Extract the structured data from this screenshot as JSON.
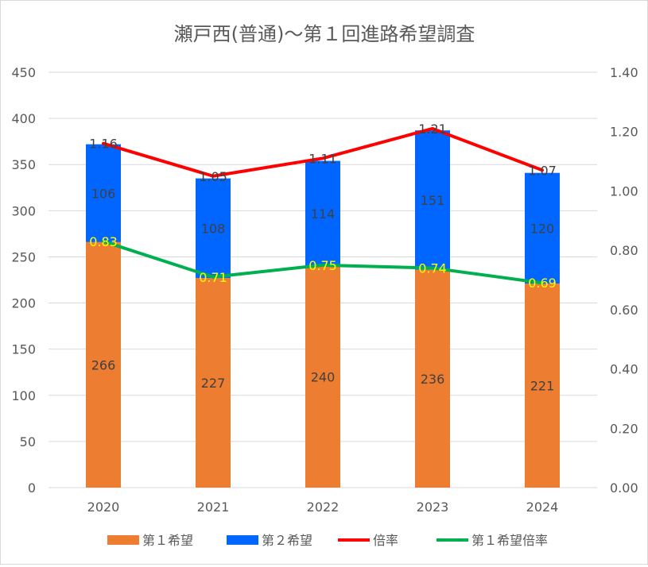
{
  "chart_data": {
    "type": "bar",
    "title": "瀬戸西(普通)～第１回進路希望調査",
    "categories": [
      "2020",
      "2021",
      "2022",
      "2023",
      "2024"
    ],
    "left_axis": {
      "ylim": [
        0,
        450
      ],
      "ticks": [
        "0",
        "50",
        "100",
        "150",
        "200",
        "250",
        "300",
        "350",
        "400",
        "450"
      ]
    },
    "right_axis": {
      "ylim": [
        0,
        1.4
      ],
      "ticks": [
        "0.00",
        "0.20",
        "0.40",
        "0.60",
        "0.80",
        "1.00",
        "1.20",
        "1.40"
      ]
    },
    "grid": true,
    "legend_position": "bottom",
    "series": [
      {
        "name": "第１希望",
        "kind": "stacked-bar",
        "axis": "left",
        "color": "#ED7D31",
        "label_color": "#404040",
        "values": [
          266,
          227,
          240,
          236,
          221
        ],
        "labels": [
          "266",
          "227",
          "240",
          "236",
          "221"
        ]
      },
      {
        "name": "第２希望",
        "kind": "stacked-bar",
        "axis": "left",
        "color": "#0066FF",
        "label_color": "#404040",
        "values": [
          106,
          108,
          114,
          151,
          120
        ],
        "labels": [
          "106",
          "108",
          "114",
          "151",
          "120"
        ]
      },
      {
        "name": "倍率",
        "kind": "line",
        "axis": "right",
        "color": "#FF0000",
        "label_color": "#404040",
        "values": [
          1.16,
          1.05,
          1.11,
          1.21,
          1.07
        ],
        "labels": [
          "1.16",
          "1.05",
          "1.11",
          "1.21",
          "1.07"
        ]
      },
      {
        "name": "第１希望倍率",
        "kind": "line",
        "axis": "right",
        "color": "#00B050",
        "label_color": "#FFFF00",
        "values": [
          0.83,
          0.71,
          0.75,
          0.74,
          0.69
        ],
        "labels": [
          "0.83",
          "0.71",
          "0.75",
          "0.74",
          "0.69"
        ]
      }
    ]
  }
}
